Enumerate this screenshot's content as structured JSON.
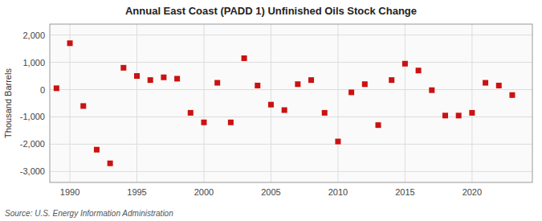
{
  "chart_data": {
    "type": "scatter",
    "title": "Annual East Coast (PADD 1) Unfinished Oils Stock Change",
    "y_label": "Thousand Barrels",
    "source": "Source: U.S. Energy Information Administration",
    "color": "#cc1111",
    "marker": "square",
    "grid": true,
    "x": [
      1989,
      1990,
      1991,
      1992,
      1993,
      1994,
      1995,
      1996,
      1997,
      1998,
      1999,
      2000,
      2001,
      2002,
      2003,
      2004,
      2005,
      2006,
      2007,
      2008,
      2009,
      2010,
      2011,
      2012,
      2013,
      2014,
      2015,
      2016,
      2017,
      2018,
      2019,
      2020,
      2021,
      2022,
      2023
    ],
    "values": [
      50,
      1700,
      -600,
      -2200,
      -2700,
      800,
      500,
      350,
      450,
      400,
      -850,
      -1200,
      250,
      -1200,
      1150,
      150,
      -550,
      -750,
      200,
      350,
      -850,
      -1900,
      -100,
      200,
      -1300,
      350,
      950,
      700,
      -20,
      -950,
      -950,
      -850,
      250,
      150,
      -200
    ],
    "xlim": [
      1988.5,
      2024.5
    ],
    "xticks": [
      1990,
      1995,
      2000,
      2005,
      2010,
      2015,
      2020
    ],
    "ylim": [
      -3400,
      2400
    ],
    "yticks": [
      {
        "value": -3000,
        "label": "-3,000"
      },
      {
        "value": -2000,
        "label": "-2,000"
      },
      {
        "value": -1000,
        "label": "-1,000"
      },
      0,
      {
        "value": 1000,
        "label": "1,000"
      },
      {
        "value": 2000,
        "label": "2,000"
      }
    ]
  }
}
